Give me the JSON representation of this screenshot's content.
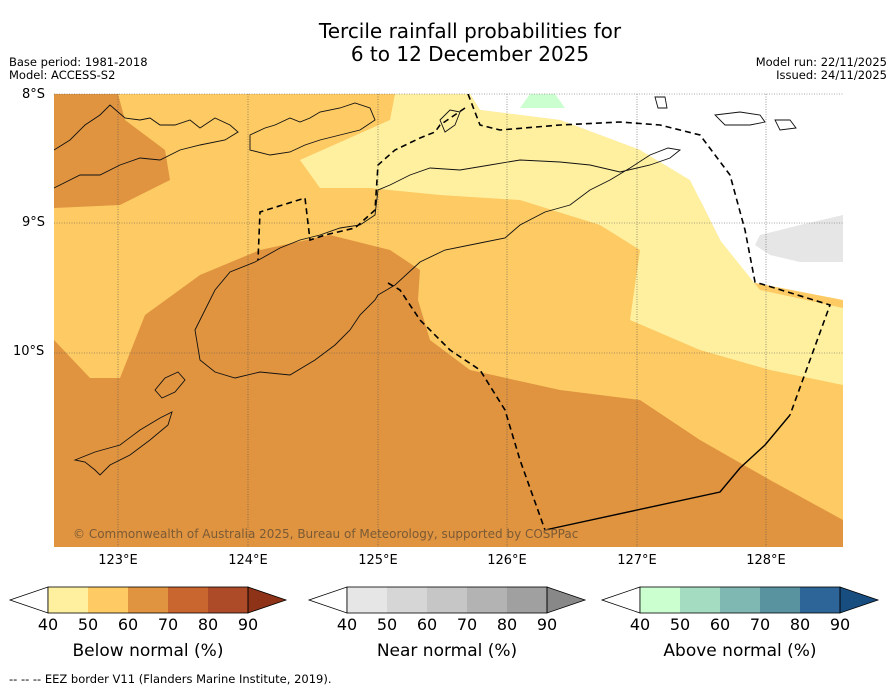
{
  "title_line1": "Tercile rainfall probabilities for",
  "title_line2": "6 to 12 December 2025",
  "meta_left": {
    "base_period": "Base period: 1981-2018",
    "model": "Model: ACCESS-S2"
  },
  "meta_right": {
    "model_run": "Model run: 22/11/2025",
    "issued": "Issued: 24/11/2025"
  },
  "latitude_labels": [
    "8°S",
    "9°S",
    "10°S"
  ],
  "longitude_labels": [
    "123°E",
    "124°E",
    "125°E",
    "126°E",
    "127°E",
    "128°E"
  ],
  "copyright": "© Commonwealth of Australia 2025, Bureau of Meteorology, supported by COSPPac",
  "colorbars": [
    {
      "label": "Below normal (%)",
      "ticks": [
        "40",
        "50",
        "60",
        "70",
        "80",
        "90"
      ],
      "colors": [
        "#fff0a0",
        "#fdca63",
        "#e09440",
        "#c9652e",
        "#ad4a28",
        "#8e3318"
      ]
    },
    {
      "label": "Near normal (%)",
      "ticks": [
        "40",
        "50",
        "60",
        "70",
        "80",
        "90"
      ],
      "colors": [
        "#e6e6e6",
        "#d6d6d6",
        "#c6c6c6",
        "#b3b3b3",
        "#a0a0a0",
        "#888888"
      ]
    },
    {
      "label": "Above normal (%)",
      "ticks": [
        "40",
        "50",
        "60",
        "70",
        "80",
        "90"
      ],
      "colors": [
        "#ccffd0",
        "#a3dcc0",
        "#7fb8b3",
        "#5a93a0",
        "#2e6599",
        "#184d80"
      ]
    }
  ],
  "footer": "--  --  -- EEZ border V11 (Flanders Marine Institute, 2019)."
}
